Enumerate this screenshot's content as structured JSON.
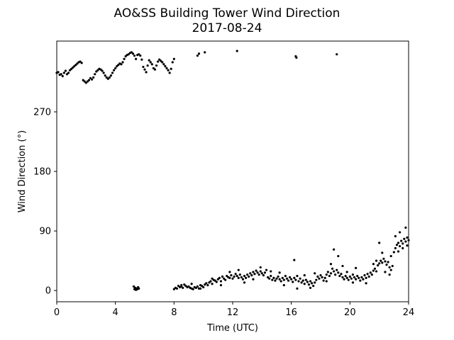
{
  "chart_data": {
    "type": "scatter",
    "title": "AO&SS Building Tower Wind Direction",
    "subtitle": "2017-08-24",
    "xlabel": "Time (UTC)",
    "ylabel": "Wind Direction (°)",
    "xlim": [
      0,
      24
    ],
    "ylim": [
      -17,
      377
    ],
    "xticks": [
      0,
      4,
      8,
      12,
      16,
      20,
      24
    ],
    "yticks": [
      0,
      90,
      180,
      270
    ],
    "grid": false,
    "marker_color": "#000000",
    "points": [
      [
        0.0,
        329
      ],
      [
        0.1,
        330
      ],
      [
        0.2,
        326
      ],
      [
        0.3,
        327
      ],
      [
        0.4,
        324
      ],
      [
        0.5,
        329
      ],
      [
        0.6,
        332
      ],
      [
        0.7,
        327
      ],
      [
        0.8,
        329
      ],
      [
        0.9,
        333
      ],
      [
        1.0,
        335
      ],
      [
        1.1,
        337
      ],
      [
        1.2,
        339
      ],
      [
        1.3,
        341
      ],
      [
        1.4,
        343
      ],
      [
        1.5,
        345
      ],
      [
        1.6,
        346
      ],
      [
        1.7,
        344
      ],
      [
        1.8,
        318
      ],
      [
        1.9,
        316
      ],
      [
        2.0,
        314
      ],
      [
        2.1,
        316
      ],
      [
        2.2,
        318
      ],
      [
        2.3,
        321
      ],
      [
        2.4,
        319
      ],
      [
        2.5,
        322
      ],
      [
        2.6,
        327
      ],
      [
        2.7,
        331
      ],
      [
        2.8,
        333
      ],
      [
        2.9,
        335
      ],
      [
        3.0,
        334
      ],
      [
        3.1,
        332
      ],
      [
        3.2,
        329
      ],
      [
        3.3,
        325
      ],
      [
        3.4,
        322
      ],
      [
        3.5,
        320
      ],
      [
        3.6,
        322
      ],
      [
        3.7,
        325
      ],
      [
        3.8,
        329
      ],
      [
        3.9,
        333
      ],
      [
        4.0,
        336
      ],
      [
        4.1,
        339
      ],
      [
        4.2,
        341
      ],
      [
        4.3,
        343
      ],
      [
        4.4,
        342
      ],
      [
        4.5,
        345
      ],
      [
        4.6,
        350
      ],
      [
        4.7,
        354
      ],
      [
        4.8,
        356
      ],
      [
        4.9,
        357
      ],
      [
        5.0,
        359
      ],
      [
        5.1,
        360
      ],
      [
        5.2,
        358
      ],
      [
        5.3,
        355
      ],
      [
        5.4,
        350
      ],
      [
        5.5,
        356
      ],
      [
        5.6,
        357
      ],
      [
        5.7,
        355
      ],
      [
        5.8,
        349
      ],
      [
        5.9,
        338
      ],
      [
        6.0,
        334
      ],
      [
        6.1,
        330
      ],
      [
        6.2,
        340
      ],
      [
        6.3,
        348
      ],
      [
        6.4,
        345
      ],
      [
        6.5,
        342
      ],
      [
        6.6,
        336
      ],
      [
        6.7,
        334
      ],
      [
        6.8,
        340
      ],
      [
        6.9,
        346
      ],
      [
        7.0,
        349
      ],
      [
        7.1,
        347
      ],
      [
        7.2,
        345
      ],
      [
        7.3,
        342
      ],
      [
        7.4,
        339
      ],
      [
        7.5,
        336
      ],
      [
        7.6,
        333
      ],
      [
        7.7,
        329
      ],
      [
        7.8,
        335
      ],
      [
        7.9,
        345
      ],
      [
        8.0,
        350
      ],
      [
        9.6,
        355
      ],
      [
        9.7,
        358
      ],
      [
        10.1,
        360
      ],
      [
        12.3,
        362
      ],
      [
        16.3,
        354
      ],
      [
        16.35,
        352
      ],
      [
        19.1,
        357
      ],
      [
        5.25,
        6
      ],
      [
        5.3,
        2
      ],
      [
        5.35,
        4
      ],
      [
        5.4,
        1
      ],
      [
        5.45,
        3
      ],
      [
        5.5,
        2
      ],
      [
        5.55,
        5
      ],
      [
        5.6,
        3
      ],
      [
        8.0,
        2
      ],
      [
        8.1,
        4
      ],
      [
        8.2,
        3
      ],
      [
        8.3,
        7
      ],
      [
        8.4,
        5
      ],
      [
        8.5,
        6
      ],
      [
        8.6,
        4
      ],
      [
        8.7,
        9
      ],
      [
        8.8,
        7
      ],
      [
        8.9,
        5
      ],
      [
        9.0,
        6
      ],
      [
        9.1,
        4
      ],
      [
        9.2,
        3
      ],
      [
        9.3,
        2
      ],
      [
        9.4,
        5
      ],
      [
        9.5,
        4
      ],
      [
        9.6,
        6
      ],
      [
        9.7,
        3
      ],
      [
        9.8,
        8
      ],
      [
        9.9,
        7
      ],
      [
        10.0,
        5
      ],
      [
        10.1,
        9
      ],
      [
        10.2,
        11
      ],
      [
        10.3,
        8
      ],
      [
        10.4,
        12
      ],
      [
        10.5,
        14
      ],
      [
        10.6,
        10
      ],
      [
        10.7,
        16
      ],
      [
        10.8,
        15
      ],
      [
        10.9,
        13
      ],
      [
        11.0,
        17
      ],
      [
        11.1,
        19
      ],
      [
        11.2,
        14
      ],
      [
        11.3,
        21
      ],
      [
        11.4,
        18
      ],
      [
        11.5,
        16
      ],
      [
        11.6,
        22
      ],
      [
        11.7,
        20
      ],
      [
        11.8,
        19
      ],
      [
        11.9,
        23
      ],
      [
        12.0,
        18
      ],
      [
        12.1,
        21
      ],
      [
        12.2,
        25
      ],
      [
        12.3,
        22
      ],
      [
        12.4,
        19
      ],
      [
        12.5,
        24
      ],
      [
        12.6,
        20
      ],
      [
        12.7,
        17
      ],
      [
        12.8,
        22
      ],
      [
        12.9,
        19
      ],
      [
        13.0,
        24
      ],
      [
        13.1,
        21
      ],
      [
        13.2,
        26
      ],
      [
        13.3,
        23
      ],
      [
        13.4,
        28
      ],
      [
        13.5,
        25
      ],
      [
        13.6,
        30
      ],
      [
        13.7,
        27
      ],
      [
        13.8,
        24
      ],
      [
        13.9,
        29
      ],
      [
        14.0,
        26
      ],
      [
        14.1,
        23
      ],
      [
        14.2,
        27
      ],
      [
        14.3,
        31
      ],
      [
        14.4,
        20
      ],
      [
        14.5,
        18
      ],
      [
        14.6,
        22
      ],
      [
        14.7,
        16
      ],
      [
        14.8,
        19
      ],
      [
        14.9,
        15
      ],
      [
        15.0,
        18
      ],
      [
        15.1,
        21
      ],
      [
        15.2,
        17
      ],
      [
        15.3,
        14
      ],
      [
        15.4,
        19
      ],
      [
        15.5,
        16
      ],
      [
        15.6,
        22
      ],
      [
        15.7,
        18
      ],
      [
        15.8,
        15
      ],
      [
        15.9,
        20
      ],
      [
        16.0,
        17
      ],
      [
        16.1,
        13
      ],
      [
        16.2,
        19
      ],
      [
        16.3,
        16
      ],
      [
        16.4,
        22
      ],
      [
        16.5,
        14
      ],
      [
        16.6,
        18
      ],
      [
        16.7,
        12
      ],
      [
        16.8,
        15
      ],
      [
        16.9,
        10
      ],
      [
        17.0,
        16
      ],
      [
        17.1,
        13
      ],
      [
        17.2,
        9
      ],
      [
        17.3,
        14
      ],
      [
        17.4,
        11
      ],
      [
        17.5,
        7
      ],
      [
        17.6,
        12
      ],
      [
        17.7,
        16
      ],
      [
        17.8,
        21
      ],
      [
        17.9,
        18
      ],
      [
        18.0,
        23
      ],
      [
        18.1,
        20
      ],
      [
        18.2,
        15
      ],
      [
        18.3,
        19
      ],
      [
        18.4,
        24
      ],
      [
        18.5,
        28
      ],
      [
        18.6,
        22
      ],
      [
        18.7,
        26
      ],
      [
        18.8,
        33
      ],
      [
        18.9,
        29
      ],
      [
        19.0,
        24
      ],
      [
        19.1,
        31
      ],
      [
        19.2,
        27
      ],
      [
        19.3,
        22
      ],
      [
        19.4,
        25
      ],
      [
        19.5,
        20
      ],
      [
        19.6,
        17
      ],
      [
        19.7,
        22
      ],
      [
        19.8,
        19
      ],
      [
        19.9,
        16
      ],
      [
        20.0,
        21
      ],
      [
        20.1,
        18
      ],
      [
        20.2,
        24
      ],
      [
        20.3,
        20
      ],
      [
        20.4,
        17
      ],
      [
        20.5,
        22
      ],
      [
        20.6,
        19
      ],
      [
        20.7,
        15
      ],
      [
        20.8,
        20
      ],
      [
        20.9,
        17
      ],
      [
        21.0,
        23
      ],
      [
        21.1,
        19
      ],
      [
        21.2,
        25
      ],
      [
        21.3,
        21
      ],
      [
        21.4,
        27
      ],
      [
        21.5,
        24
      ],
      [
        21.6,
        30
      ],
      [
        21.7,
        33
      ],
      [
        21.8,
        29
      ],
      [
        21.9,
        38
      ],
      [
        22.0,
        41
      ],
      [
        22.1,
        45
      ],
      [
        22.2,
        42
      ],
      [
        22.3,
        48
      ],
      [
        22.4,
        44
      ],
      [
        22.5,
        39
      ],
      [
        22.6,
        43
      ],
      [
        22.7,
        35
      ],
      [
        22.8,
        31
      ],
      [
        22.9,
        37
      ],
      [
        23.0,
        58
      ],
      [
        23.1,
        64
      ],
      [
        23.2,
        69
      ],
      [
        23.3,
        72
      ],
      [
        23.4,
        67
      ],
      [
        23.5,
        75
      ],
      [
        23.6,
        71
      ],
      [
        23.7,
        78
      ],
      [
        23.8,
        74
      ],
      [
        23.9,
        80
      ],
      [
        24.0,
        76
      ],
      [
        8.5,
        8
      ],
      [
        9.2,
        10
      ],
      [
        9.8,
        3
      ],
      [
        10.6,
        18
      ],
      [
        11.2,
        8
      ],
      [
        11.8,
        28
      ],
      [
        12.4,
        31
      ],
      [
        12.8,
        12
      ],
      [
        13.4,
        17
      ],
      [
        13.9,
        35
      ],
      [
        14.6,
        29
      ],
      [
        15.2,
        27
      ],
      [
        15.5,
        8
      ],
      [
        16.2,
        46
      ],
      [
        16.4,
        3
      ],
      [
        16.9,
        23
      ],
      [
        17.3,
        4
      ],
      [
        17.6,
        26
      ],
      [
        18.4,
        14
      ],
      [
        18.7,
        40
      ],
      [
        18.9,
        62
      ],
      [
        19.2,
        52
      ],
      [
        19.5,
        37
      ],
      [
        19.8,
        28
      ],
      [
        20.2,
        12
      ],
      [
        20.4,
        34
      ],
      [
        21.1,
        11
      ],
      [
        21.6,
        40
      ],
      [
        22.2,
        57
      ],
      [
        22.4,
        28
      ],
      [
        22.7,
        24
      ],
      [
        22.8,
        52
      ],
      [
        23.1,
        82
      ],
      [
        23.3,
        59
      ],
      [
        23.4,
        88
      ],
      [
        23.6,
        64
      ],
      [
        23.8,
        95
      ],
      [
        23.9,
        68
      ],
      [
        22.0,
        72
      ],
      [
        21.8,
        45
      ]
    ]
  }
}
